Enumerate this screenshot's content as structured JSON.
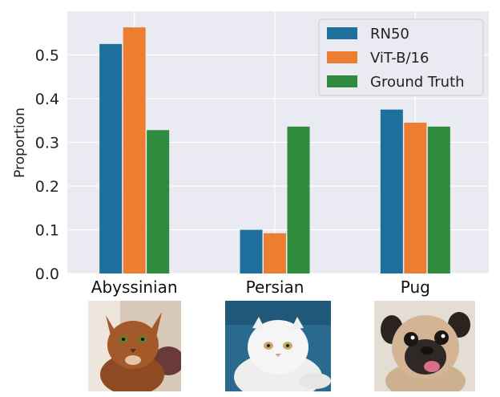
{
  "chart_data": {
    "type": "bar",
    "title": "",
    "xlabel": "",
    "ylabel": "Proportion",
    "ylim": [
      0,
      0.6
    ],
    "yticks": [
      "0.0",
      "0.1",
      "0.2",
      "0.3",
      "0.4",
      "0.5"
    ],
    "grid": true,
    "legend_position": "top-right",
    "categories": [
      "Abyssinian",
      "Persian",
      "Pug"
    ],
    "series": [
      {
        "name": "RN50",
        "color": "#1f6f9c",
        "values": [
          0.525,
          0.1,
          0.375
        ]
      },
      {
        "name": "ViT-B/16",
        "color": "#ed7d31",
        "values": [
          0.563,
          0.092,
          0.345
        ]
      },
      {
        "name": "Ground Truth",
        "color": "#2e8b3e",
        "values": [
          0.328,
          0.336,
          0.336
        ]
      }
    ]
  },
  "images": [
    {
      "category": "Abyssinian",
      "icon": "abyssinian-cat-photo",
      "colors": {
        "bg": "#d8c8b8",
        "fur": "#a4592b"
      }
    },
    {
      "category": "Persian",
      "icon": "persian-cat-photo",
      "colors": {
        "bg": "#2a6a8e",
        "fur": "#f2f2f2"
      }
    },
    {
      "category": "Pug",
      "icon": "pug-dog-photo",
      "colors": {
        "bg": "#e4ddd4",
        "fur": "#d3b596"
      }
    }
  ]
}
